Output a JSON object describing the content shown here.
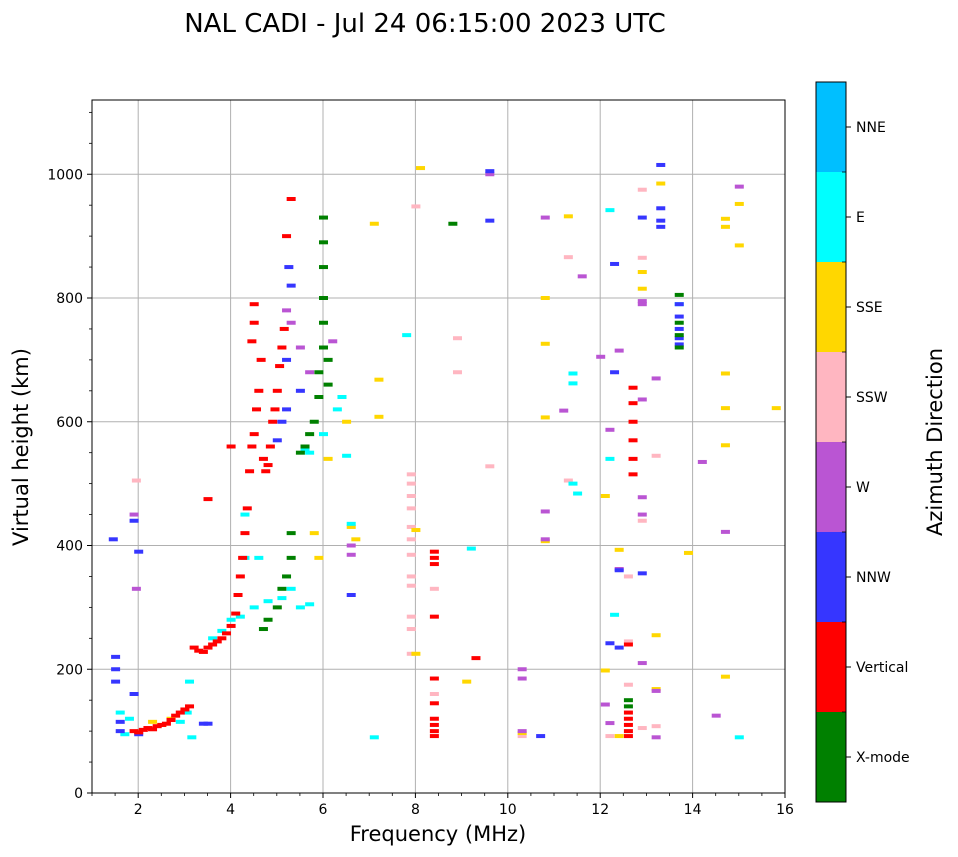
{
  "chart_data": {
    "type": "scatter",
    "title": "NAL CADI - Jul 24 06:15:00 2023 UTC",
    "xlabel": "Frequency (MHz)",
    "ylabel": "Virtual height (km)",
    "xlim": [
      1,
      16
    ],
    "ylim": [
      0,
      1120
    ],
    "xticks": [
      2,
      4,
      6,
      8,
      10,
      12,
      14,
      16
    ],
    "yticks": [
      0,
      200,
      400,
      600,
      800,
      1000
    ],
    "grid": true,
    "colorbar": {
      "label": "Azimuth Direction",
      "categories": [
        {
          "name": "NNE",
          "color": "#00BFFF"
        },
        {
          "name": "E",
          "color": "#00FFFF"
        },
        {
          "name": "SSE",
          "color": "#FFD700"
        },
        {
          "name": "SSW",
          "color": "#FFB6C1"
        },
        {
          "name": "W",
          "color": "#BA55D3"
        },
        {
          "name": "NNW",
          "color": "#3636FF"
        },
        {
          "name": "Vertical",
          "color": "#FF0000"
        },
        {
          "name": "X-mode",
          "color": "#008000"
        }
      ]
    },
    "series": [
      {
        "name": "Vertical",
        "points": [
          [
            1.9,
            100
          ],
          [
            2.0,
            98
          ],
          [
            2.1,
            102
          ],
          [
            2.2,
            105
          ],
          [
            2.3,
            103
          ],
          [
            2.4,
            108
          ],
          [
            2.5,
            110
          ],
          [
            2.6,
            112
          ],
          [
            2.7,
            118
          ],
          [
            2.8,
            125
          ],
          [
            2.9,
            130
          ],
          [
            3.0,
            135
          ],
          [
            3.1,
            140
          ],
          [
            3.2,
            235
          ],
          [
            3.3,
            230
          ],
          [
            3.4,
            228
          ],
          [
            3.5,
            235
          ],
          [
            3.6,
            240
          ],
          [
            3.7,
            245
          ],
          [
            3.8,
            250
          ],
          [
            3.9,
            258
          ],
          [
            4.0,
            270
          ],
          [
            4.1,
            290
          ],
          [
            4.15,
            320
          ],
          [
            4.2,
            350
          ],
          [
            4.25,
            380
          ],
          [
            4.3,
            420
          ],
          [
            4.35,
            460
          ],
          [
            4.4,
            520
          ],
          [
            4.45,
            560
          ],
          [
            4.5,
            580
          ],
          [
            4.55,
            620
          ],
          [
            4.6,
            650
          ],
          [
            4.65,
            700
          ],
          [
            4.7,
            540
          ],
          [
            4.75,
            520
          ],
          [
            4.8,
            530
          ],
          [
            4.85,
            560
          ],
          [
            4.9,
            600
          ],
          [
            4.95,
            620
          ],
          [
            5.0,
            650
          ],
          [
            5.05,
            690
          ],
          [
            5.1,
            720
          ],
          [
            5.15,
            750
          ],
          [
            5.2,
            900
          ],
          [
            5.3,
            960
          ],
          [
            4.5,
            760
          ],
          [
            4.5,
            790
          ],
          [
            4.45,
            730
          ],
          [
            3.5,
            475
          ],
          [
            4.0,
            560
          ],
          [
            8.4,
            390
          ],
          [
            8.4,
            380
          ],
          [
            8.4,
            370
          ],
          [
            8.4,
            285
          ],
          [
            8.4,
            185
          ],
          [
            8.4,
            145
          ],
          [
            8.4,
            120
          ],
          [
            8.4,
            110
          ],
          [
            8.4,
            100
          ],
          [
            8.4,
            92
          ],
          [
            9.3,
            218
          ],
          [
            12.6,
            240
          ],
          [
            12.6,
            130
          ],
          [
            12.6,
            120
          ],
          [
            12.6,
            110
          ],
          [
            12.6,
            100
          ],
          [
            12.6,
            92
          ],
          [
            12.7,
            655
          ],
          [
            12.7,
            630
          ],
          [
            12.7,
            600
          ],
          [
            12.7,
            570
          ],
          [
            12.7,
            540
          ],
          [
            12.7,
            515
          ]
        ]
      },
      {
        "name": "X-mode",
        "points": [
          [
            5.3,
            380
          ],
          [
            5.3,
            420
          ],
          [
            5.2,
            350
          ],
          [
            5.1,
            330
          ],
          [
            5.0,
            300
          ],
          [
            4.8,
            280
          ],
          [
            4.7,
            265
          ],
          [
            5.5,
            550
          ],
          [
            5.6,
            560
          ],
          [
            5.7,
            580
          ],
          [
            5.8,
            600
          ],
          [
            5.9,
            640
          ],
          [
            5.9,
            680
          ],
          [
            6.0,
            720
          ],
          [
            6.0,
            760
          ],
          [
            6.0,
            800
          ],
          [
            6.0,
            850
          ],
          [
            6.0,
            890
          ],
          [
            6.0,
            930
          ],
          [
            6.1,
            700
          ],
          [
            6.1,
            660
          ],
          [
            8.8,
            920
          ],
          [
            12.6,
            150
          ],
          [
            12.6,
            140
          ],
          [
            13.7,
            805
          ],
          [
            13.7,
            760
          ],
          [
            13.7,
            740
          ],
          [
            13.7,
            720
          ]
        ]
      },
      {
        "name": "NNW",
        "points": [
          [
            1.45,
            410
          ],
          [
            1.5,
            220
          ],
          [
            1.5,
            200
          ],
          [
            1.5,
            180
          ],
          [
            1.6,
            115
          ],
          [
            1.6,
            100
          ],
          [
            1.9,
            160
          ],
          [
            2.0,
            95
          ],
          [
            1.9,
            440
          ],
          [
            2.0,
            390
          ],
          [
            3.4,
            112
          ],
          [
            3.5,
            112
          ],
          [
            5.0,
            570
          ],
          [
            5.1,
            600
          ],
          [
            5.2,
            620
          ],
          [
            5.2,
            700
          ],
          [
            5.25,
            850
          ],
          [
            5.3,
            820
          ],
          [
            5.5,
            650
          ],
          [
            6.6,
            320
          ],
          [
            9.6,
            1005
          ],
          [
            9.6,
            925
          ],
          [
            10.7,
            92
          ],
          [
            12.2,
            242
          ],
          [
            12.3,
            855
          ],
          [
            12.3,
            680
          ],
          [
            12.4,
            360
          ],
          [
            12.4,
            235
          ],
          [
            12.9,
            930
          ],
          [
            12.9,
            355
          ],
          [
            13.3,
            1015
          ],
          [
            13.3,
            945
          ],
          [
            13.3,
            915
          ],
          [
            13.3,
            925
          ],
          [
            13.7,
            790
          ],
          [
            13.7,
            770
          ],
          [
            13.7,
            750
          ],
          [
            13.7,
            735
          ],
          [
            13.7,
            725
          ]
        ]
      },
      {
        "name": "W",
        "points": [
          [
            1.9,
            450
          ],
          [
            1.95,
            330
          ],
          [
            5.2,
            780
          ],
          [
            5.3,
            760
          ],
          [
            5.5,
            720
          ],
          [
            5.7,
            680
          ],
          [
            6.2,
            730
          ],
          [
            6.6,
            385
          ],
          [
            6.6,
            400
          ],
          [
            9.6,
            1000
          ],
          [
            10.3,
            200
          ],
          [
            10.3,
            185
          ],
          [
            10.3,
            100
          ],
          [
            10.8,
            930
          ],
          [
            10.8,
            455
          ],
          [
            10.8,
            410
          ],
          [
            11.2,
            618
          ],
          [
            11.6,
            835
          ],
          [
            12.0,
            705
          ],
          [
            12.2,
            587
          ],
          [
            12.1,
            143
          ],
          [
            12.2,
            113
          ],
          [
            12.4,
            362
          ],
          [
            12.4,
            715
          ],
          [
            12.9,
            795
          ],
          [
            12.9,
            790
          ],
          [
            12.9,
            636
          ],
          [
            12.9,
            478
          ],
          [
            12.9,
            450
          ],
          [
            12.9,
            210
          ],
          [
            13.2,
            670
          ],
          [
            13.2,
            165
          ],
          [
            13.2,
            90
          ],
          [
            14.2,
            535
          ],
          [
            14.5,
            125
          ],
          [
            14.7,
            422
          ],
          [
            15.0,
            980
          ]
        ]
      },
      {
        "name": "SSW",
        "points": [
          [
            1.95,
            505
          ],
          [
            7.9,
            515
          ],
          [
            7.9,
            500
          ],
          [
            7.9,
            480
          ],
          [
            7.9,
            460
          ],
          [
            7.9,
            430
          ],
          [
            7.9,
            410
          ],
          [
            7.9,
            385
          ],
          [
            7.9,
            350
          ],
          [
            7.9,
            335
          ],
          [
            7.9,
            285
          ],
          [
            7.9,
            265
          ],
          [
            7.9,
            225
          ],
          [
            8.0,
            948
          ],
          [
            8.4,
            330
          ],
          [
            8.4,
            160
          ],
          [
            8.9,
            735
          ],
          [
            8.9,
            680
          ],
          [
            9.6,
            528
          ],
          [
            10.3,
            92
          ],
          [
            11.3,
            866
          ],
          [
            11.3,
            505
          ],
          [
            12.2,
            92
          ],
          [
            12.6,
            350
          ],
          [
            12.6,
            245
          ],
          [
            12.6,
            175
          ],
          [
            12.9,
            975
          ],
          [
            12.9,
            865
          ],
          [
            12.9,
            440
          ],
          [
            12.9,
            105
          ],
          [
            13.2,
            545
          ],
          [
            13.2,
            108
          ]
        ]
      },
      {
        "name": "SSE",
        "points": [
          [
            2.3,
            115
          ],
          [
            2.5,
            110
          ],
          [
            2.7,
            120
          ],
          [
            5.8,
            420
          ],
          [
            5.9,
            380
          ],
          [
            6.1,
            540
          ],
          [
            6.4,
            640
          ],
          [
            6.5,
            600
          ],
          [
            6.6,
            430
          ],
          [
            6.7,
            410
          ],
          [
            7.1,
            920
          ],
          [
            7.2,
            668
          ],
          [
            7.2,
            608
          ],
          [
            8.1,
            1010
          ],
          [
            8.0,
            425
          ],
          [
            8.0,
            225
          ],
          [
            9.1,
            180
          ],
          [
            10.3,
            97
          ],
          [
            10.8,
            800
          ],
          [
            10.8,
            726
          ],
          [
            10.8,
            607
          ],
          [
            10.8,
            407
          ],
          [
            11.3,
            932
          ],
          [
            12.1,
            480
          ],
          [
            12.1,
            198
          ],
          [
            12.4,
            393
          ],
          [
            12.4,
            92
          ],
          [
            12.9,
            842
          ],
          [
            12.9,
            815
          ],
          [
            13.2,
            255
          ],
          [
            13.2,
            168
          ],
          [
            13.3,
            985
          ],
          [
            13.9,
            388
          ],
          [
            14.7,
            928
          ],
          [
            14.7,
            915
          ],
          [
            14.7,
            678
          ],
          [
            14.7,
            622
          ],
          [
            14.7,
            562
          ],
          [
            14.7,
            188
          ],
          [
            15.0,
            952
          ],
          [
            15.0,
            885
          ],
          [
            15.8,
            622
          ]
        ]
      },
      {
        "name": "E",
        "points": [
          [
            1.6,
            130
          ],
          [
            1.7,
            95
          ],
          [
            1.8,
            120
          ],
          [
            2.9,
            115
          ],
          [
            3.05,
            130
          ],
          [
            3.1,
            180
          ],
          [
            3.15,
            90
          ],
          [
            3.6,
            250
          ],
          [
            3.8,
            262
          ],
          [
            4.0,
            280
          ],
          [
            4.2,
            285
          ],
          [
            4.5,
            300
          ],
          [
            4.8,
            310
          ],
          [
            5.1,
            315
          ],
          [
            5.3,
            330
          ],
          [
            5.5,
            300
          ],
          [
            5.7,
            305
          ],
          [
            4.6,
            380
          ],
          [
            4.3,
            380
          ],
          [
            4.3,
            450
          ],
          [
            5.6,
            555
          ],
          [
            5.7,
            550
          ],
          [
            6.0,
            580
          ],
          [
            6.3,
            620
          ],
          [
            6.4,
            640
          ],
          [
            6.5,
            545
          ],
          [
            6.6,
            435
          ],
          [
            7.1,
            90
          ],
          [
            7.8,
            740
          ],
          [
            9.2,
            395
          ],
          [
            11.4,
            678
          ],
          [
            11.4,
            662
          ],
          [
            11.4,
            500
          ],
          [
            11.5,
            484
          ],
          [
            12.2,
            540
          ],
          [
            12.2,
            942
          ],
          [
            12.3,
            288
          ],
          [
            13.7,
            790
          ],
          [
            15.0,
            90
          ]
        ]
      }
    ]
  }
}
